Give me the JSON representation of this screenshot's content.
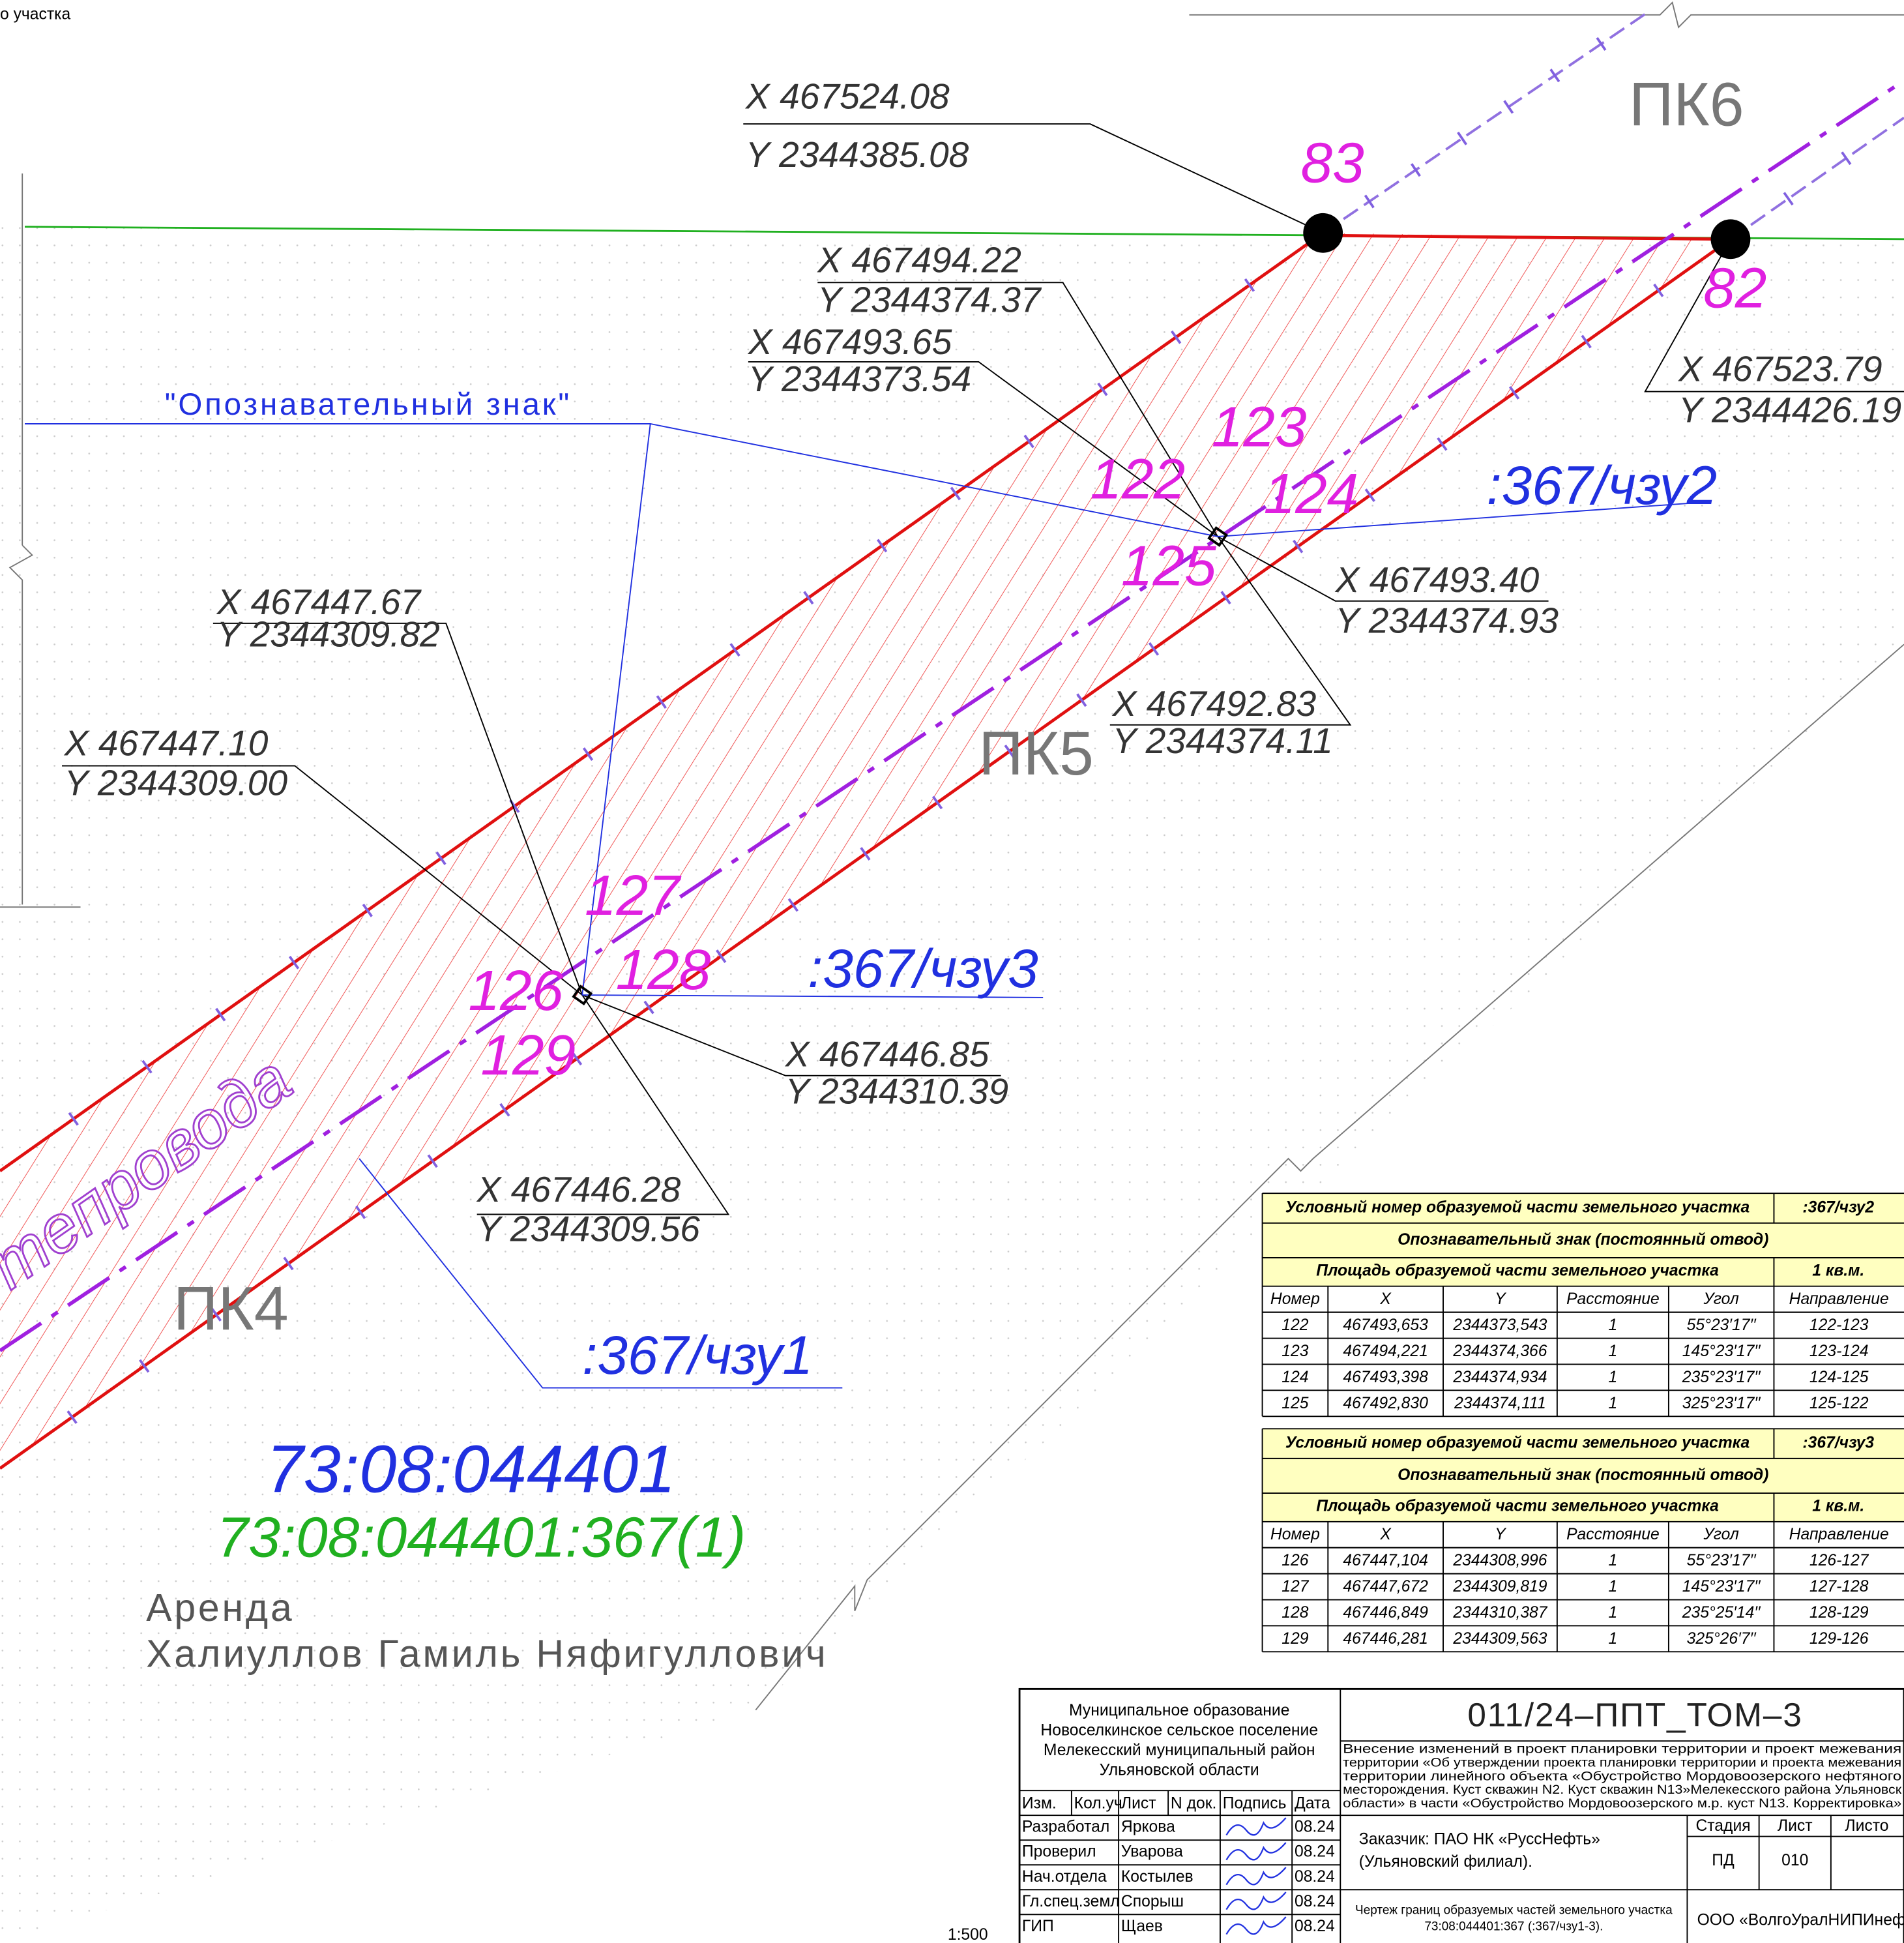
{
  "drawing": {
    "header_fragment": "о участка",
    "pickets": [
      "ПК6",
      "ПК5",
      "ПК4"
    ],
    "points": [
      "83",
      "82",
      "122",
      "123",
      "124",
      "125",
      "126",
      "127",
      "128",
      "129"
    ],
    "coordinates": [
      {
        "x": "X 467524.08",
        "y": "Y 2344385.08"
      },
      {
        "x": "X 467494.22",
        "y": "Y 2344374.37"
      },
      {
        "x": "X 467493.65",
        "y": "Y 2344373.54"
      },
      {
        "x": "X 467493.40",
        "y": "Y 2344374.93"
      },
      {
        "x": "X 467492.83",
        "y": "Y 2344374.11"
      },
      {
        "x": "X 467447.67",
        "y": "Y 2344309.82"
      },
      {
        "x": "X 467447.10",
        "y": "Y 2344309.00"
      },
      {
        "x": "X 467446.85",
        "y": "Y 2344310.39"
      },
      {
        "x": "X 467446.28",
        "y": "Y 2344309.56"
      },
      {
        "x": "X 467523.79",
        "y": "Y 2344426.19"
      }
    ],
    "sign_label": "\"Опознавательный знак\"",
    "parts": [
      ":367/чзу2",
      ":367/чзу3",
      ":367/чзу1"
    ],
    "pipeline": "тепровода",
    "cadastral_quarter": "73:08:044401",
    "parcel": "73:08:044401:367(1)",
    "lease": "Аренда",
    "owner": "Халиуллов Гамиль Няфигуллович"
  },
  "tables": [
    {
      "title": "Условный номер образуемой части земельного участка",
      "part": ":367/чзу2",
      "sign": "Опознавательный знак (постоянный отвод)",
      "area_label": "Площадь образуемой части земельного участка",
      "area": "1 кв.м.",
      "columns": [
        "Номер",
        "X",
        "Y",
        "Расстояние",
        "Угол",
        "Направление"
      ],
      "rows": [
        [
          "122",
          "467493,653",
          "2344373,543",
          "1",
          "55°23′17′′",
          "122-123"
        ],
        [
          "123",
          "467494,221",
          "2344374,366",
          "1",
          "145°23′17′′",
          "123-124"
        ],
        [
          "124",
          "467493,398",
          "2344374,934",
          "1",
          "235°23′17′′",
          "124-125"
        ],
        [
          "125",
          "467492,830",
          "2344374,111",
          "1",
          "325°23′17′′",
          "125-122"
        ]
      ]
    },
    {
      "title": "Условный номер образуемой части земельного участка",
      "part": ":367/чзу3",
      "sign": "Опознавательный знак (постоянный отвод)",
      "area_label": "Площадь образуемой части земельного участка",
      "area": "1 кв.м.",
      "columns": [
        "Номер",
        "X",
        "Y",
        "Расстояние",
        "Угол",
        "Направление"
      ],
      "rows": [
        [
          "126",
          "467447,104",
          "2344308,996",
          "1",
          "55°23′17′′",
          "126-127"
        ],
        [
          "127",
          "467447,672",
          "2344309,819",
          "1",
          "145°23′17′′",
          "127-128"
        ],
        [
          "128",
          "467446,849",
          "2344310,387",
          "1",
          "235°25′14′′",
          "128-129"
        ],
        [
          "129",
          "467446,281",
          "2344309,563",
          "1",
          "325°26′7′′",
          "129-126"
        ]
      ]
    }
  ],
  "title_block": {
    "municipality": [
      "Муниципальное образование",
      "Новоселкинское сельское поселение",
      "Мелекесский муниципальный район",
      "Ульяновской области"
    ],
    "columns": [
      "Изм.",
      "Кол.уч",
      "Лист",
      "N док.",
      "Подпись",
      "Дата"
    ],
    "staff": [
      [
        "Разработал",
        "Яркова",
        "08.24"
      ],
      [
        "Проверил",
        "Уварова",
        "08.24"
      ],
      [
        "Нач.отдела",
        "Костылев",
        "08.24"
      ],
      [
        "Гл.спец.земл",
        "Спорыш",
        "08.24"
      ],
      [
        "ГИП",
        "Щаев",
        "08.24"
      ]
    ],
    "code": "011/24–ППТ_ТОМ–3",
    "description": [
      "Внесение изменений в проект планировки территории и проект межевания",
      "территории «Об утверждении проекта планировки территории и проекта межевания",
      "территории линейного объекта «Обустройство Мордовоозерского нефтяного",
      "месторождения. Куст скважин N2. Куст скважин N13»Мелекесского района Ульяновск",
      "области» в части «Обустройство Мордовоозерского м.р. куст N13. Корректировка»"
    ],
    "customer": [
      "Заказчик: ПАО НК «РуссНефть»",
      "(Ульяновский филиал)."
    ],
    "stage_headers": [
      "Стадия",
      "Лист",
      "Листо"
    ],
    "stage": "ПД",
    "sheet": "010",
    "drawing_title": [
      "Чертеж границ образуемых частей земельного участка",
      "73:08:044401:367 (:367/чзу1-3)."
    ],
    "company": "ООО «ВолгоУралНИПИнефт",
    "scale": "1:500"
  }
}
